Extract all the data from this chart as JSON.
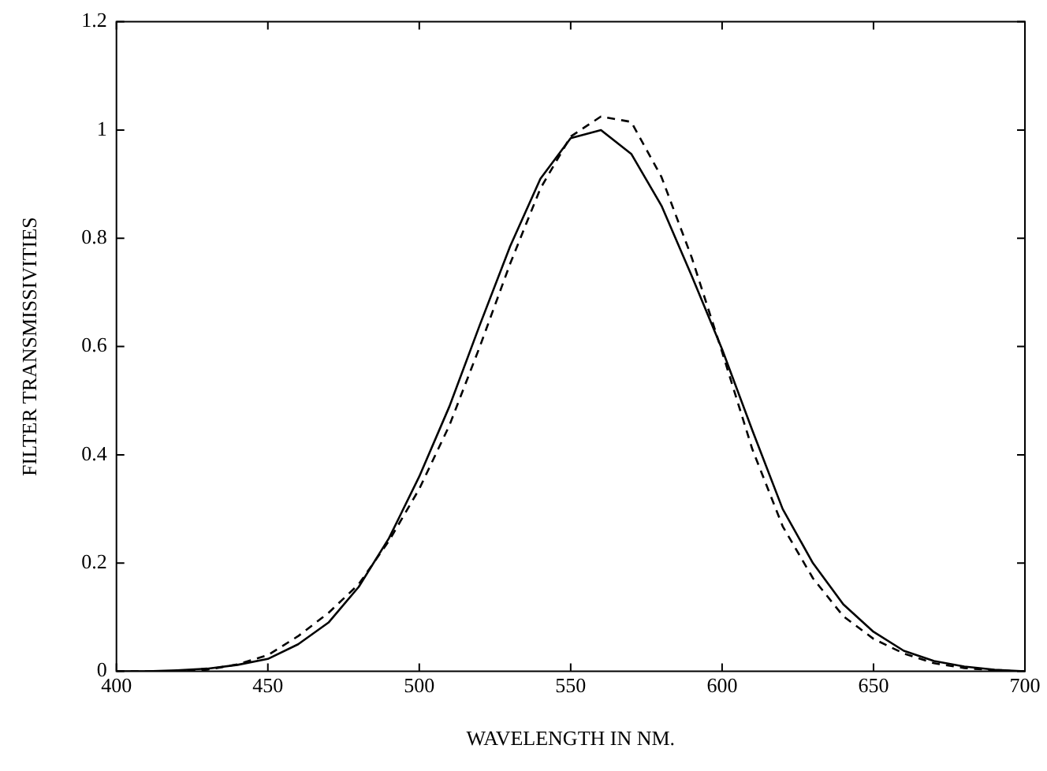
{
  "chart_data": {
    "type": "line",
    "xlabel": "WAVELENGTH IN NM.",
    "ylabel": "FILTER TRANSMISSIVITIES",
    "x": [
      400,
      410,
      420,
      430,
      440,
      450,
      460,
      470,
      480,
      490,
      500,
      510,
      520,
      530,
      540,
      550,
      560,
      570,
      580,
      590,
      600,
      610,
      620,
      630,
      640,
      650,
      660,
      670,
      680,
      690,
      700
    ],
    "series": [
      {
        "color": "#000000",
        "line_style": "solid",
        "values": [
          0,
          0,
          0.002,
          0.005,
          0.012,
          0.023,
          0.05,
          0.09,
          0.156,
          0.246,
          0.36,
          0.49,
          0.64,
          0.785,
          0.91,
          0.985,
          1.0,
          0.956,
          0.86,
          0.73,
          0.595,
          0.445,
          0.3,
          0.2,
          0.124,
          0.073,
          0.038,
          0.019,
          0.009,
          0.003,
          0
        ]
      },
      {
        "color": "#000000",
        "line_style": "dashed",
        "values": [
          0,
          0,
          0,
          0.003,
          0.013,
          0.03,
          0.065,
          0.108,
          0.161,
          0.241,
          0.337,
          0.455,
          0.6,
          0.753,
          0.892,
          0.988,
          1.025,
          1.015,
          0.913,
          0.764,
          0.59,
          0.41,
          0.268,
          0.172,
          0.102,
          0.06,
          0.033,
          0.015,
          0.006,
          0.002,
          0
        ]
      }
    ],
    "xlim": [
      400,
      700
    ],
    "xticks": [
      400,
      450,
      500,
      550,
      600,
      650,
      700
    ],
    "ylim": [
      0,
      1.2
    ],
    "yticks": [
      0,
      0.2,
      0.4,
      0.6,
      0.8,
      1,
      1.2
    ],
    "grid": false,
    "legend": false,
    "marker": "none"
  }
}
